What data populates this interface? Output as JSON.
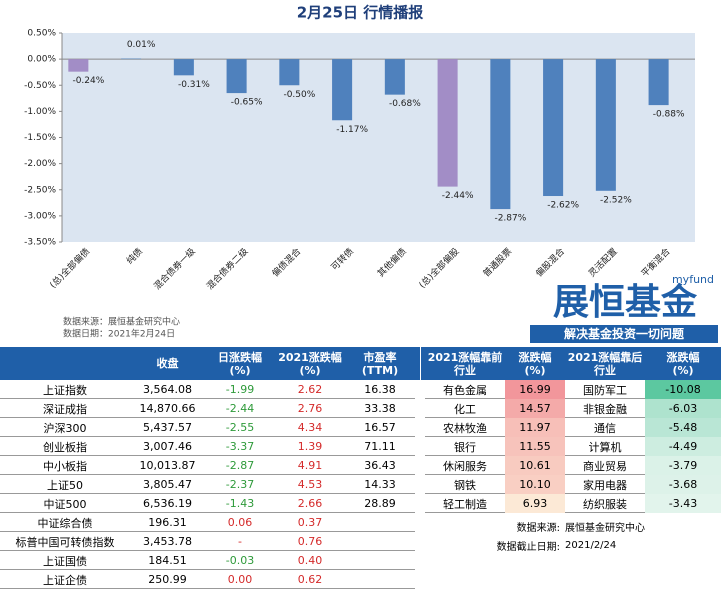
{
  "chart_data": {
    "type": "bar",
    "title": "2月25日 行情播报",
    "categories": [
      "(总)全部偏债",
      "纯债",
      "混合债券一级",
      "混合债券二级",
      "偏债混合",
      "可转债",
      "其他偏债",
      "(总)全部偏股",
      "普通股票",
      "偏股混合",
      "灵活配置",
      "平衡混合"
    ],
    "values": [
      -0.24,
      0.01,
      -0.31,
      -0.65,
      -0.5,
      -1.17,
      -0.68,
      -2.44,
      -2.87,
      -2.62,
      -2.52,
      -0.88
    ],
    "value_labels": [
      "-0.24%",
      "0.01%",
      "-0.31%",
      "-0.65%",
      "-0.50%",
      "-1.17%",
      "-0.68%",
      "-2.44%",
      "-2.87%",
      "-2.62%",
      "-2.52%",
      "-0.88%"
    ],
    "colors": [
      "#a28dc6",
      "#4f81bd",
      "#4f81bd",
      "#4f81bd",
      "#4f81bd",
      "#4f81bd",
      "#4f81bd",
      "#a28dc6",
      "#4f81bd",
      "#4f81bd",
      "#4f81bd",
      "#4f81bd"
    ],
    "ylim": [
      -3.5,
      0.5
    ],
    "yticks": [
      {
        "value": 0.5,
        "label": "0.50%"
      },
      {
        "value": 0,
        "label": "0.00%"
      },
      {
        "value": -0.5,
        "label": "-0.50%"
      },
      {
        "value": -1,
        "label": "-1.00%"
      },
      {
        "value": -1.5,
        "label": "-1.50%"
      },
      {
        "value": -2,
        "label": "-2.00%"
      },
      {
        "value": -2.5,
        "label": "-2.50%"
      },
      {
        "value": -3,
        "label": "-3.00%"
      },
      {
        "value": -3.5,
        "label": "-3.50%"
      }
    ]
  },
  "notes": [
    "数据来源：展恒基金研究中心",
    "数据日期：2021年2月24日"
  ],
  "logo": {
    "brand": "myfund",
    "name": "展恒基金",
    "slogan": "解决基金投资一切问题"
  },
  "index_table": {
    "headers": [
      [
        "收盘"
      ],
      [
        "日涨跌幅",
        "(%)"
      ],
      [
        "2021涨跌幅",
        "(%)"
      ],
      [
        "市盈率",
        "(TTM)"
      ]
    ],
    "rows": [
      [
        "上证指数",
        "3,564.08",
        "-1.99",
        "2.62",
        "16.38"
      ],
      [
        "深证成指",
        "14,870.66",
        "-2.44",
        "2.76",
        "33.38"
      ],
      [
        "沪深300",
        "5,437.57",
        "-2.55",
        "4.34",
        "16.57"
      ],
      [
        "创业板指",
        "3,007.46",
        "-3.37",
        "1.39",
        "71.11"
      ],
      [
        "中小板指",
        "10,013.87",
        "-2.87",
        "4.91",
        "36.43"
      ],
      [
        "上证50",
        "3,805.47",
        "-2.37",
        "4.53",
        "14.33"
      ],
      [
        "中证500",
        "6,536.19",
        "-1.43",
        "2.66",
        "28.89"
      ],
      [
        "中证综合债",
        "196.31",
        "0.06",
        "0.37"
      ],
      [
        "标普中国可转债指数",
        "3,453.78",
        "-",
        "0.76"
      ],
      [
        "上证国债",
        "184.51",
        "-0.03",
        "0.40"
      ],
      [
        "上证企债",
        "250.99",
        "0.00",
        "0.62"
      ]
    ]
  },
  "industry_table": {
    "headers": [
      [
        "2021涨幅靠前",
        "行业"
      ],
      [
        "涨跌幅",
        "(%)"
      ],
      [
        "2021涨幅靠后",
        "行业"
      ],
      [
        "涨跌幅",
        "(%)"
      ]
    ],
    "rows": [
      [
        "有色金属",
        "16.99",
        "国防军工",
        "-10.08"
      ],
      [
        "化工",
        "14.57",
        "非银金融",
        "-6.03"
      ],
      [
        "农林牧渔",
        "11.97",
        "通信",
        "-5.48"
      ],
      [
        "银行",
        "11.55",
        "计算机",
        "-4.49"
      ],
      [
        "休闲服务",
        "10.61",
        "商业贸易",
        "-3.79"
      ],
      [
        "钢铁",
        "10.10",
        "家用电器",
        "-3.68"
      ],
      [
        "轻工制造",
        "6.93",
        "纺织服装",
        "-3.43"
      ]
    ],
    "footer": [
      [
        "数据来源:",
        "展恒基金研究中心"
      ],
      [
        "数据截止日期:",
        "2021/2/24"
      ]
    ]
  }
}
